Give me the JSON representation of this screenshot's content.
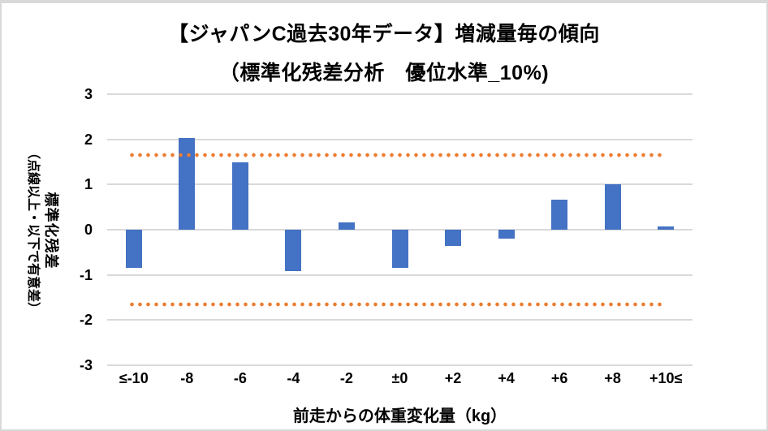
{
  "chart_data": {
    "type": "bar",
    "title": "【ジャパンC過去30年データ】増減量毎の傾向",
    "subtitle": "（標準化残差分析　優位水準_10%)",
    "xlabel": "前走からの体重変化量（kg）",
    "ylabel": "標準化残差",
    "ylabel_note": "（点線以上・以下で有意差）",
    "categories": [
      "≤-10",
      "-8",
      "-6",
      "-4",
      "-2",
      "±0",
      "+2",
      "+4",
      "+6",
      "+8",
      "+10≤"
    ],
    "values": [
      -0.84,
      2.03,
      1.49,
      -0.91,
      0.17,
      -0.85,
      -0.36,
      -0.19,
      0.66,
      1.01,
      0.07
    ],
    "ylim": [
      -3,
      3
    ],
    "yticks": [
      3,
      2,
      1,
      0,
      -1,
      -2,
      -3
    ],
    "significance_lines": [
      1.645,
      -1.645
    ],
    "grid": true,
    "legend": "none",
    "colors": {
      "bar": "#4472c4",
      "significance": "#ed7d31",
      "gridline": "#d9d9d9",
      "text": "#000000"
    }
  }
}
